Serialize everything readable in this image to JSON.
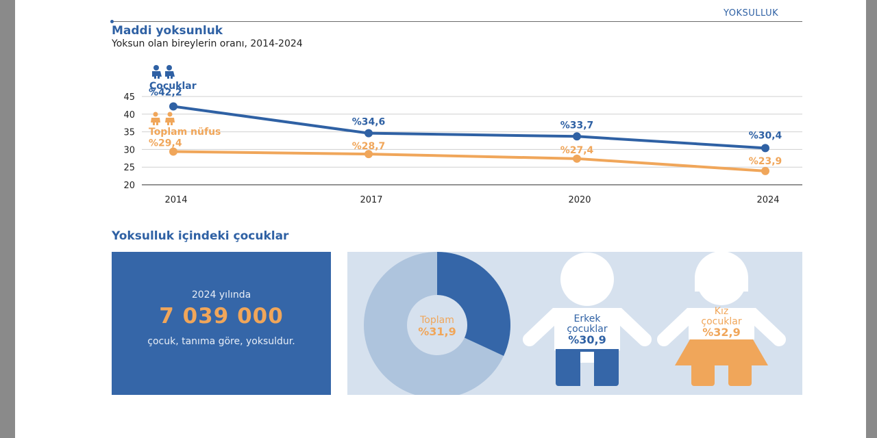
{
  "section_tag": "YOKSULLUK",
  "title": "Maddi yoksunluk",
  "subtitle": "Yoksun olan bireylerin oranı, 2014-2024",
  "legend": {
    "children": "Çocuklar",
    "total": "Toplam nüfus"
  },
  "colors": {
    "blue": "#2f61a4",
    "orange": "#f0a65a",
    "grid": "#cfcfcf"
  },
  "chart_data": {
    "type": "line",
    "x": [
      "2014",
      "2017",
      "2020",
      "2024"
    ],
    "ylim": [
      20,
      45
    ],
    "yticks": [
      20,
      25,
      30,
      35,
      40,
      45
    ],
    "grid": true,
    "series": [
      {
        "name": "Çocuklar",
        "color": "#2f61a4",
        "values": [
          42.2,
          34.6,
          33.7,
          30.4
        ],
        "labels": [
          "%42,2",
          "%34,6",
          "%33,7",
          "%30,4"
        ]
      },
      {
        "name": "Toplam nüfus",
        "color": "#f0a65a",
        "values": [
          29.4,
          28.7,
          27.4,
          23.9
        ],
        "labels": [
          "%29,4",
          "%28,7",
          "%27,4",
          "%23,9"
        ]
      }
    ]
  },
  "section2_title": "Yoksulluk içindeki çocuklar",
  "stat_box": {
    "year_text": "2024 yılında",
    "big_number": "7 039 000",
    "description": "çocuk, tanıma göre, yoksuldur."
  },
  "infographic": {
    "donut": {
      "label": "Toplam",
      "value_label": "%31,9",
      "value": 31.9
    },
    "boy": {
      "label_line1": "Erkek",
      "label_line2": "çocuklar",
      "value_label": "%30,9"
    },
    "girl": {
      "label_line1": "Kız",
      "label_line2": "çocuklar",
      "value_label": "%32,9"
    }
  }
}
